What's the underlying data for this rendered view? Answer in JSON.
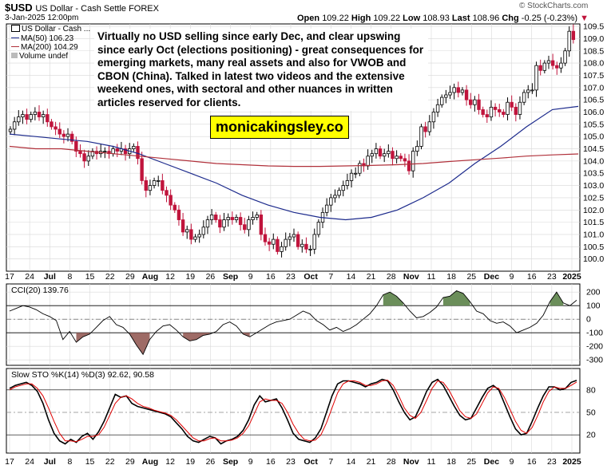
{
  "header": {
    "symbol": "$USD",
    "name": "US Dollar - Cash Settle FOREX",
    "date": "3-Jan-2025 12:00pm",
    "open_label": "Open",
    "open": "109.22",
    "high_label": "High",
    "high": "109.22",
    "low_label": "Low",
    "low": "108.93",
    "last_label": "Last",
    "last": "108.96",
    "chg_label": "Chg",
    "chg": "-0.25 (-0.23%)",
    "watermark": "© StockCharts.com"
  },
  "legend": {
    "main": "US Dollar - Cash ...",
    "ma50": "MA(50) 106.23",
    "ma200": "MA(200) 104.29",
    "volume": "Volume undef"
  },
  "annotation": "Virtually no USD selling since early Dec, and clear upswing since early Oct (elections positioning) - great consequences for emerging markets, many real assets and also for VWOB and CBON (China). Talked in latest two videos and the extensive weekend ones, with sectoral and other nuances in written articles reserved for clients.",
  "brand": "monicakingsley.co",
  "colors": {
    "up": "#000000",
    "down": "#c0143c",
    "ma50": "#1c2a8c",
    "ma200": "#b0303a",
    "cci_up": "#6b8e5a",
    "cci_down": "#9e6b66",
    "k": "#000000",
    "d": "#e00000",
    "grid": "#d8d8d8"
  },
  "chart_data": [
    {
      "type": "candlestick",
      "title": "$USD US Dollar - Cash Settle FOREX",
      "ylim": [
        99.5,
        109.6
      ],
      "y_ticks": [
        "109.5",
        "109.0",
        "108.5",
        "108.0",
        "107.5",
        "107.0",
        "106.5",
        "106.0",
        "105.5",
        "105.0",
        "104.5",
        "104.0",
        "103.5",
        "103.0",
        "102.5",
        "102.0",
        "101.5",
        "101.0",
        "100.5",
        "100.0"
      ],
      "x_ticks": [
        "17",
        "24",
        "Jul",
        "8",
        "15",
        "22",
        "29",
        "Aug",
        "12",
        "19",
        "26",
        "Sep",
        "9",
        "16",
        "23",
        "Oct",
        "7",
        "14",
        "21",
        "28",
        "Nov",
        "11",
        "18",
        "25",
        "Dec",
        "9",
        "16",
        "23",
        "2025"
      ],
      "close": [
        105.3,
        105.6,
        105.8,
        105.9,
        105.7,
        105.9,
        106.0,
        105.8,
        105.9,
        105.6,
        105.4,
        105.3,
        105.1,
        105.0,
        105.1,
        104.8,
        104.4,
        104.3,
        104.0,
        104.2,
        104.4,
        104.3,
        104.4,
        104.4,
        104.3,
        104.5,
        104.4,
        104.5,
        104.3,
        104.5,
        104.6,
        104.1,
        103.2,
        102.8,
        103.0,
        103.2,
        103.2,
        102.8,
        102.6,
        102.2,
        102.0,
        101.6,
        101.1,
        101.2,
        100.8,
        100.9,
        101.0,
        101.3,
        101.6,
        101.8,
        101.6,
        101.3,
        101.6,
        101.7,
        101.6,
        101.7,
        101.4,
        101.2,
        101.6,
        101.7,
        101.8,
        101.0,
        100.7,
        100.6,
        100.8,
        100.3,
        100.5,
        100.8,
        100.9,
        101.0,
        100.5,
        100.6,
        100.4,
        100.4,
        101.0,
        101.5,
        101.9,
        102.2,
        102.5,
        102.6,
        102.8,
        103.0,
        103.2,
        103.5,
        103.5,
        103.9,
        103.8,
        104.2,
        104.3,
        104.5,
        104.2,
        104.3,
        104.4,
        104.1,
        104.2,
        104.1,
        104.0,
        103.6,
        104.4,
        104.6,
        105.4,
        105.2,
        105.6,
        106.0,
        106.3,
        106.6,
        106.7,
        106.8,
        107.0,
        106.8,
        106.9,
        106.5,
        106.3,
        106.5,
        106.1,
        105.9,
        105.8,
        106.2,
        106.1,
        106.0,
        105.9,
        106.4,
        106.2,
        105.9,
        106.4,
        106.8,
        106.9,
        106.9,
        107.9,
        107.7,
        108.0,
        108.1,
        107.9,
        107.8,
        108.0,
        108.5,
        109.3,
        108.96
      ],
      "series": [
        {
          "name": "MA(50) 106.23",
          "values": [
            105.1,
            105.0,
            104.9,
            104.8,
            104.6,
            104.3,
            103.9,
            103.5,
            103.1,
            102.6,
            102.2,
            101.9,
            101.7,
            101.6,
            101.7,
            102.0,
            102.5,
            103.1,
            103.9,
            104.6,
            105.4,
            106.1,
            106.23
          ]
        },
        {
          "name": "MA(200) 104.29",
          "values": [
            104.6,
            104.5,
            104.5,
            104.4,
            104.3,
            104.2,
            104.1,
            104.0,
            103.9,
            103.85,
            103.8,
            103.78,
            103.78,
            103.8,
            103.82,
            103.85,
            103.9,
            103.98,
            104.05,
            104.12,
            104.2,
            104.25,
            104.29
          ]
        }
      ]
    },
    {
      "type": "area",
      "title": "CCI(20) 139.76",
      "name": "CCI(20)",
      "ylim": [
        -340,
        260
      ],
      "y_ticks": [
        "200",
        "100",
        "0",
        "-100",
        "-200",
        "-300"
      ],
      "values": [
        60,
        80,
        100,
        90,
        70,
        40,
        20,
        -10,
        -150,
        -90,
        -170,
        -130,
        -110,
        -60,
        -10,
        20,
        -40,
        -60,
        -110,
        -190,
        -260,
        -150,
        -90,
        -50,
        -40,
        -80,
        -130,
        -160,
        -150,
        -120,
        -110,
        -90,
        -40,
        -20,
        -50,
        -110,
        -130,
        -100,
        -70,
        -40,
        -20,
        -10,
        0,
        30,
        60,
        40,
        -10,
        -40,
        -80,
        -60,
        -90,
        -70,
        -40,
        0,
        40,
        100,
        180,
        200,
        170,
        120,
        60,
        10,
        20,
        50,
        90,
        160,
        170,
        210,
        190,
        130,
        60,
        40,
        -10,
        -30,
        -20,
        -50,
        -100,
        -80,
        -60,
        -30,
        30,
        130,
        200,
        120,
        100,
        139.76
      ]
    },
    {
      "type": "line",
      "title": "Slow STO %K(14) %D(3) 92.62, 90.58",
      "name": "Slow STO",
      "ylim": [
        0,
        100
      ],
      "y_ticks": [
        "80",
        "50",
        "20"
      ],
      "series": [
        {
          "name": "%K(14) 92.62",
          "values": [
            82,
            86,
            88,
            90,
            86,
            78,
            62,
            40,
            22,
            12,
            8,
            14,
            10,
            18,
            22,
            14,
            24,
            38,
            56,
            74,
            70,
            72,
            62,
            58,
            56,
            54,
            52,
            50,
            48,
            44,
            36,
            28,
            18,
            12,
            10,
            14,
            18,
            16,
            8,
            12,
            14,
            18,
            26,
            40,
            60,
            72,
            64,
            66,
            68,
            56,
            40,
            22,
            14,
            12,
            10,
            16,
            28,
            50,
            72,
            88,
            92,
            92,
            90,
            88,
            84,
            88,
            90,
            94,
            92,
            80,
            64,
            50,
            40,
            44,
            60,
            78,
            90,
            94,
            86,
            72,
            58,
            46,
            40,
            42,
            56,
            70,
            82,
            86,
            80,
            62,
            44,
            28,
            20,
            22,
            38,
            56,
            72,
            84,
            84,
            80,
            82,
            90,
            92.62
          ]
        },
        {
          "name": "%D(3) 90.58",
          "values": [
            80,
            84,
            86,
            88,
            88,
            82,
            72,
            56,
            38,
            22,
            12,
            12,
            11,
            14,
            18,
            18,
            20,
            30,
            46,
            62,
            70,
            72,
            68,
            62,
            58,
            56,
            53,
            51,
            49,
            46,
            40,
            32,
            24,
            16,
            12,
            12,
            15,
            16,
            12,
            12,
            13,
            16,
            22,
            32,
            48,
            64,
            68,
            66,
            66,
            62,
            50,
            34,
            22,
            14,
            12,
            13,
            20,
            36,
            56,
            76,
            88,
            92,
            92,
            90,
            86,
            86,
            88,
            92,
            93,
            86,
            72,
            56,
            46,
            42,
            50,
            66,
            82,
            92,
            90,
            80,
            66,
            52,
            44,
            42,
            48,
            62,
            76,
            84,
            82,
            70,
            54,
            38,
            26,
            22,
            30,
            46,
            64,
            78,
            84,
            82,
            82,
            86,
            90.58
          ]
        }
      ]
    }
  ]
}
